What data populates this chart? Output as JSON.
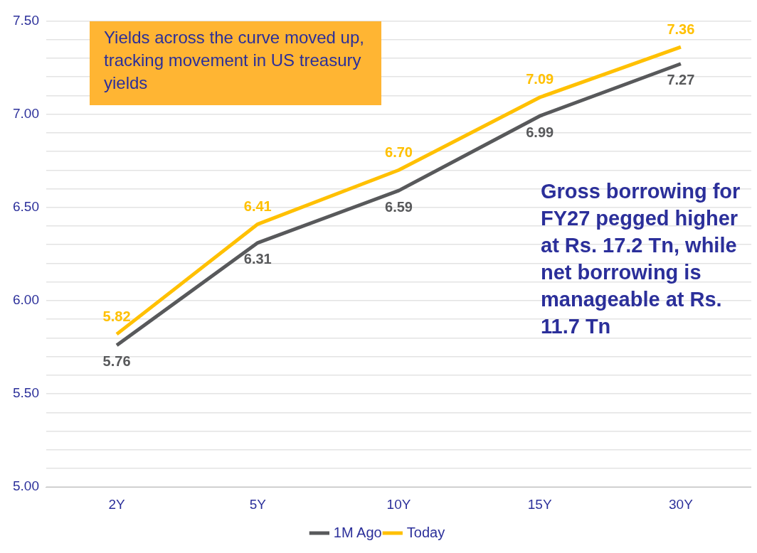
{
  "chart_data": {
    "type": "line",
    "categories": [
      "2Y",
      "5Y",
      "10Y",
      "15Y",
      "30Y"
    ],
    "series": [
      {
        "name": "1M Ago",
        "color": "#58595b",
        "values": [
          5.76,
          6.31,
          6.59,
          6.99,
          7.27
        ],
        "value_labels": [
          "5.76",
          "6.31",
          "6.59",
          "6.99",
          "7.27"
        ]
      },
      {
        "name": "Today",
        "color": "#ffc000",
        "values": [
          5.82,
          6.41,
          6.7,
          7.09,
          7.36
        ],
        "value_labels": [
          "5.82",
          "6.41",
          "6.70",
          "7.09",
          "7.36"
        ]
      }
    ],
    "ylim": [
      5,
      7.5
    ],
    "yticks": [
      {
        "value": 5,
        "label": "5.00"
      },
      {
        "value": 5.1,
        "label": null
      },
      {
        "value": 5.2,
        "label": null
      },
      {
        "value": 5.3,
        "label": null
      },
      {
        "value": 5.4,
        "label": null
      },
      {
        "value": 5.5,
        "label": "5.50"
      },
      {
        "value": 5.6,
        "label": null
      },
      {
        "value": 5.7,
        "label": null
      },
      {
        "value": 5.8,
        "label": null
      },
      {
        "value": 5.9,
        "label": null
      },
      {
        "value": 6,
        "label": "6.00"
      },
      {
        "value": 6.1,
        "label": null
      },
      {
        "value": 6.2,
        "label": null
      },
      {
        "value": 6.3,
        "label": null
      },
      {
        "value": 6.4,
        "label": null
      },
      {
        "value": 6.5,
        "label": "6.50"
      },
      {
        "value": 6.6,
        "label": null
      },
      {
        "value": 6.7,
        "label": null
      },
      {
        "value": 6.8,
        "label": null
      },
      {
        "value": 6.9,
        "label": null
      },
      {
        "value": 7,
        "label": "7.00"
      },
      {
        "value": 7.1,
        "label": null
      },
      {
        "value": 7.2,
        "label": null
      },
      {
        "value": 7.3,
        "label": null
      },
      {
        "value": 7.4,
        "label": null
      },
      {
        "value": 7.5,
        "label": "7.50"
      }
    ],
    "grid": "y",
    "legend": "bottom",
    "marker": "none",
    "line_style": "solid",
    "annotations": [
      "Yields across the curve moved up, tracking movement in US treasury yields",
      "Gross borrowing for FY27 pegged higher at Rs. 17.2 Tn, while net borrowing is manageable at Rs. 11.7 Tn"
    ]
  }
}
